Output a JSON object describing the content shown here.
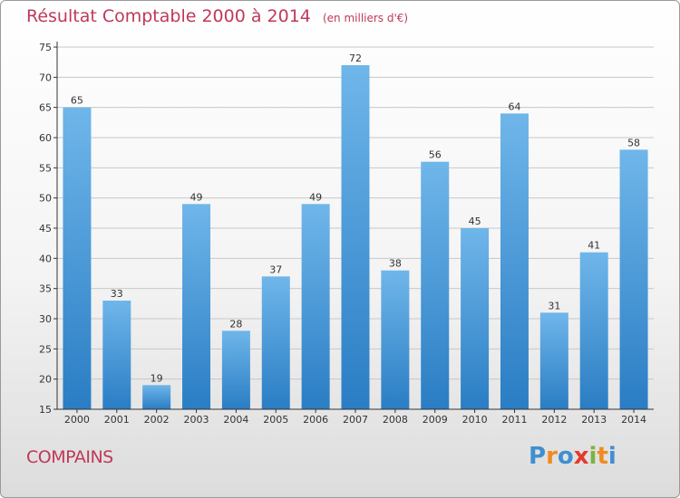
{
  "chart_data": {
    "type": "bar",
    "title": "Résultat Comptable 2000 à 2014",
    "unit_label": "(en milliers d'€)",
    "categories": [
      "2000",
      "2001",
      "2002",
      "2003",
      "2004",
      "2005",
      "2006",
      "2007",
      "2008",
      "2009",
      "2010",
      "2011",
      "2012",
      "2013",
      "2014"
    ],
    "values": [
      65,
      33,
      19,
      49,
      28,
      37,
      49,
      72,
      38,
      56,
      45,
      64,
      31,
      41,
      58
    ],
    "ylim": [
      15,
      75
    ],
    "yticks": [
      15,
      20,
      25,
      30,
      35,
      40,
      45,
      50,
      55,
      60,
      65,
      70,
      75
    ],
    "grid": true,
    "xlabel": "",
    "ylabel": ""
  },
  "commune": "COMPAINS",
  "logo": {
    "text": "Proxiti",
    "letters": [
      "P",
      "r",
      "o",
      "x",
      "i",
      "t",
      "i"
    ]
  },
  "colors": {
    "bar_light": "#6fb6ea",
    "bar_dark": "#2a7dc4",
    "title": "#c0385a",
    "axis": "#333333",
    "grid": "#c8c8c8",
    "logo_letters": [
      "#3f8fd1",
      "#f08a24",
      "#3f8fd1",
      "#e33a2c",
      "#7cb342",
      "#f08a24",
      "#3f8fd1"
    ]
  }
}
